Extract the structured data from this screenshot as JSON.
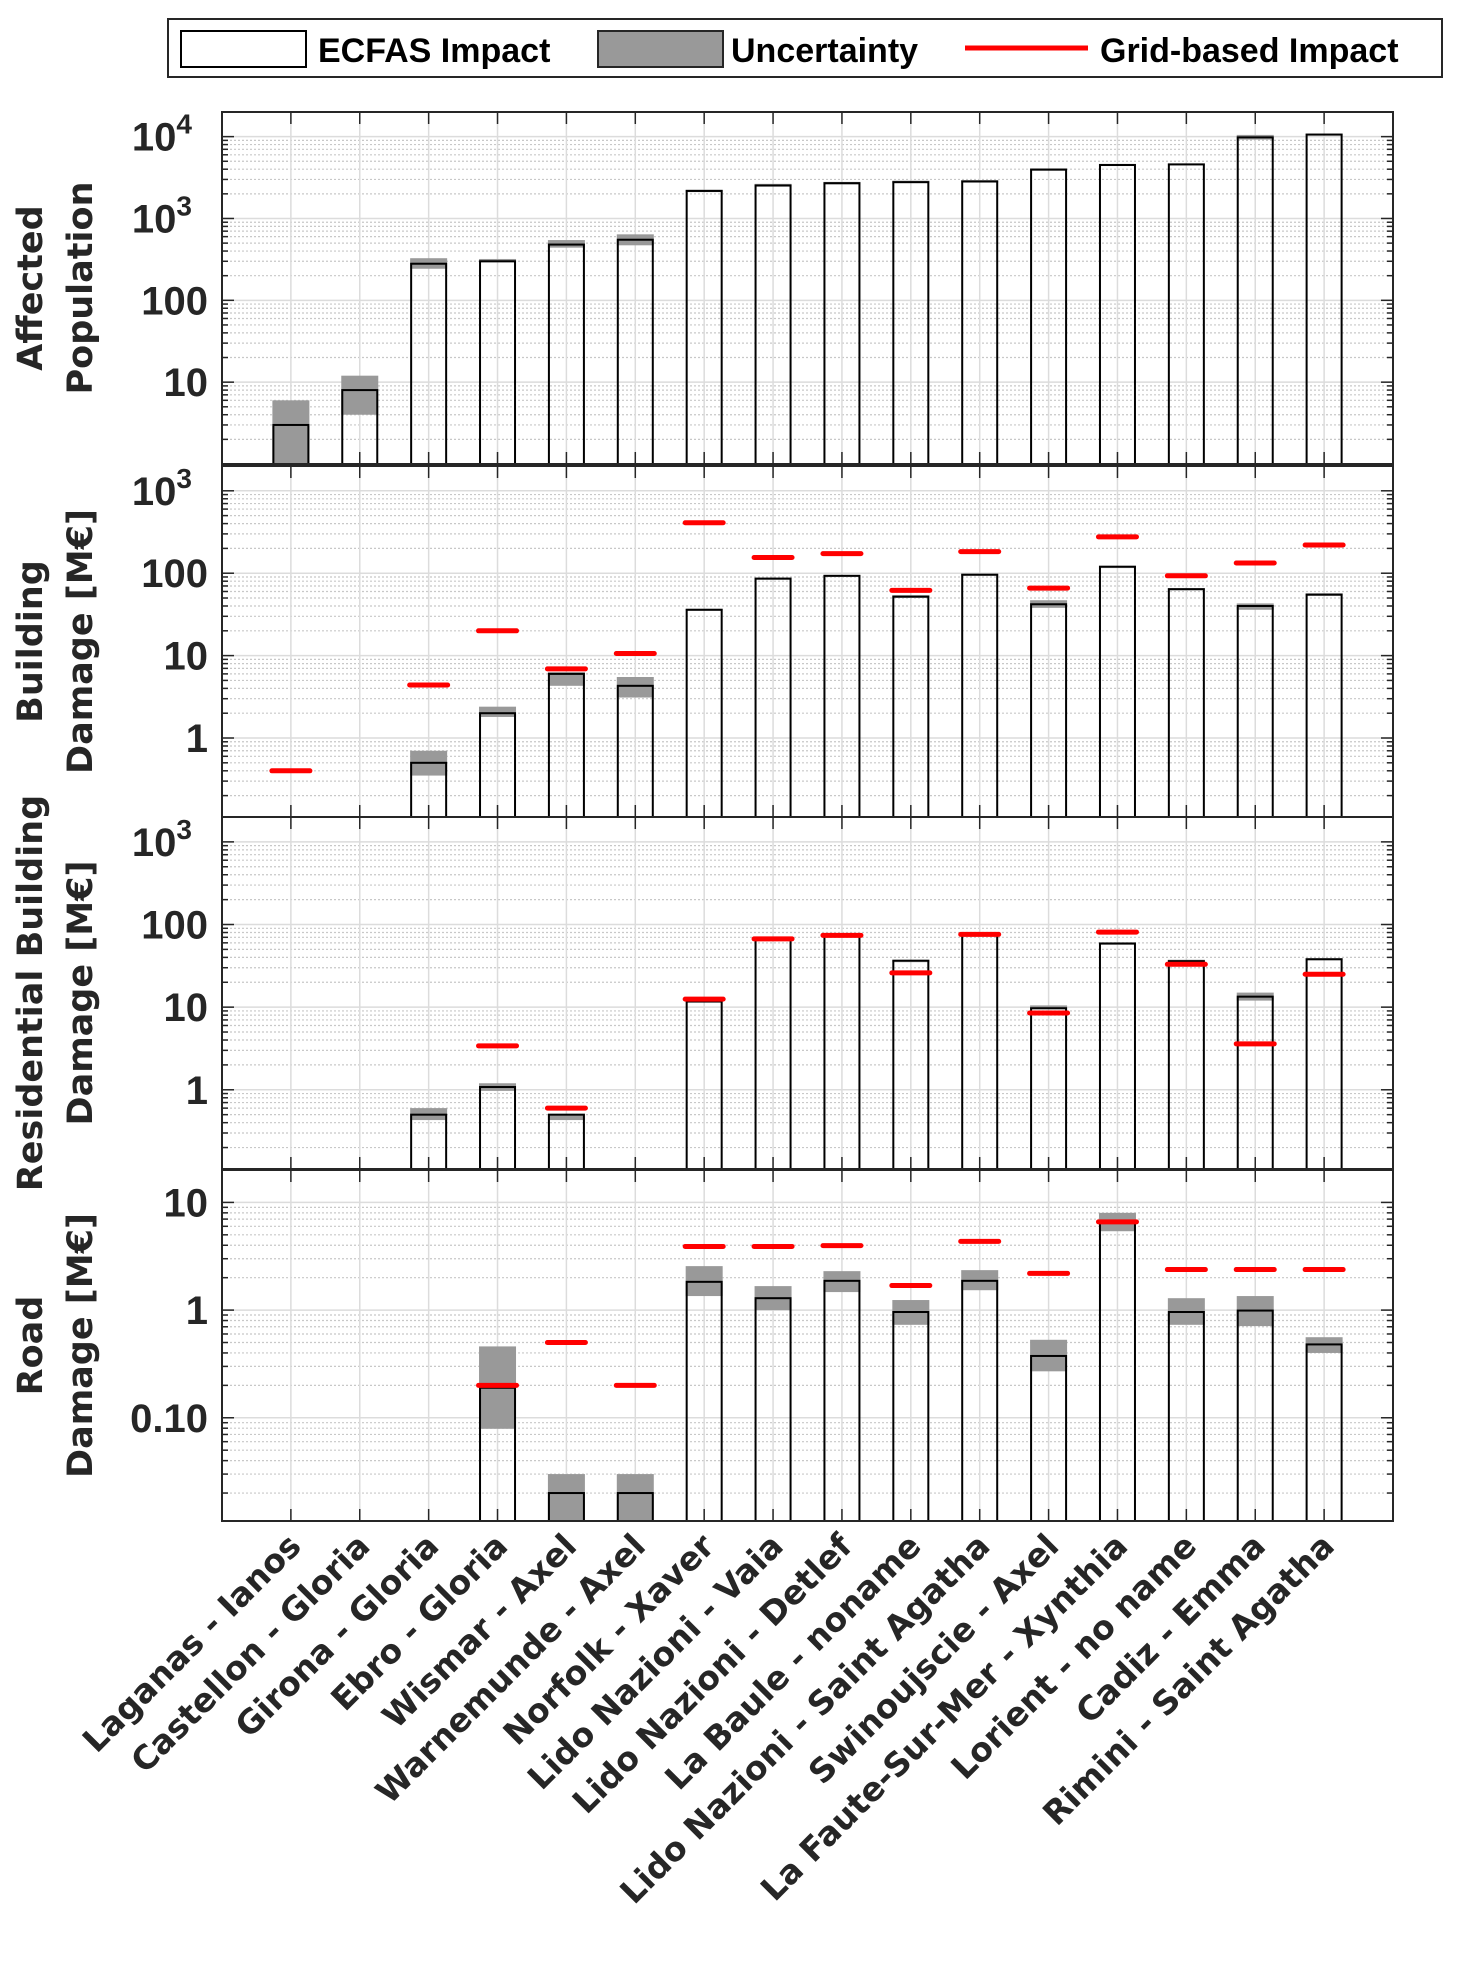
{
  "chart_data": {
    "type": "bar",
    "scale": "log",
    "categories": [
      "Laganas - Ianos",
      "Castellon - Gloria",
      "Girona - Gloria",
      "Ebro - Gloria",
      "Wismar - Axel",
      "Warnemunde - Axel",
      "Norfolk - Xaver",
      "Lido Nazioni - Vaia",
      "Lido Nazioni - Detlef",
      "La Baule - noname",
      "Lido Nazioni - Saint Agatha",
      "Swinoujscie - Axel",
      "La Faute-Sur-Mer - Xynthia",
      "Lorient - no name",
      "Cadiz - Emma",
      "Rimini - Saint Agatha"
    ],
    "legend": {
      "placement": "top",
      "entries": [
        {
          "name": "ECFAS Impact",
          "kind": "bar-outline",
          "color": "#000000"
        },
        {
          "name": "Uncertainty",
          "kind": "band",
          "color": "#999999"
        },
        {
          "name": "Grid-based Impact",
          "kind": "line",
          "color": "#ff0000"
        }
      ]
    },
    "grid": true,
    "panels": [
      {
        "ylabel": [
          "Affected",
          "Population"
        ],
        "ylim": [
          1,
          20000
        ],
        "yticks": [
          {
            "v": 10,
            "label": "10"
          },
          {
            "v": 100,
            "label": "100"
          },
          {
            "v": 1000,
            "label": "10^3"
          },
          {
            "v": 10000,
            "label": "10^4"
          }
        ],
        "ecfas": [
          3,
          8,
          280,
          300,
          480,
          550,
          2170,
          2530,
          2700,
          2780,
          2830,
          3950,
          4500,
          4580,
          9800,
          10600
        ],
        "uncertainty": [
          [
            1,
            6
          ],
          [
            4,
            12
          ],
          [
            243,
            327
          ],
          [
            290,
            320
          ],
          [
            440,
            545
          ],
          [
            470,
            640
          ],
          [
            2100,
            2250
          ],
          [
            2450,
            2650
          ],
          [
            2600,
            2800
          ],
          [
            2700,
            2900
          ],
          [
            2750,
            2950
          ],
          [
            3850,
            4100
          ],
          [
            4400,
            4650
          ],
          [
            4450,
            4700
          ],
          [
            9200,
            10500
          ],
          [
            10300,
            10900
          ]
        ],
        "grid_based": [
          null,
          null,
          null,
          null,
          null,
          null,
          null,
          null,
          null,
          null,
          null,
          null,
          null,
          null,
          null,
          null
        ]
      },
      {
        "ylabel": [
          "Building",
          "Damage [M€]"
        ],
        "ylim": [
          0.11,
          2000
        ],
        "yticks": [
          {
            "v": 1,
            "label": "1"
          },
          {
            "v": 10,
            "label": "10"
          },
          {
            "v": 100,
            "label": "100"
          },
          {
            "v": 1000,
            "label": "10^3"
          }
        ],
        "ecfas": [
          null,
          null,
          0.5,
          2.0,
          6.0,
          4.3,
          36,
          86,
          93,
          52,
          96,
          42,
          120,
          64,
          40,
          55
        ],
        "uncertainty": [
          null,
          null,
          [
            0.35,
            0.7
          ],
          [
            1.8,
            2.4
          ],
          [
            4.3,
            6.3
          ],
          [
            3.1,
            5.5
          ],
          [
            35,
            37
          ],
          [
            84,
            88
          ],
          [
            91,
            95
          ],
          [
            50,
            54
          ],
          [
            94,
            98
          ],
          [
            38,
            47
          ],
          [
            118,
            122
          ],
          [
            62,
            66
          ],
          [
            36,
            43
          ],
          [
            53,
            57
          ]
        ],
        "grid_based": [
          0.4,
          null,
          4.4,
          20,
          6.9,
          10.6,
          410,
          155,
          173,
          62,
          183,
          66,
          276,
          93,
          133,
          220
        ]
      },
      {
        "ylabel": [
          "Residential Building",
          "Damage [M€]"
        ],
        "ylim": [
          0.11,
          2000
        ],
        "yticks": [
          {
            "v": 1,
            "label": "1"
          },
          {
            "v": 10,
            "label": "10"
          },
          {
            "v": 100,
            "label": "100"
          },
          {
            "v": 1000,
            "label": "10^3"
          }
        ],
        "ecfas": [
          null,
          null,
          0.5,
          1.08,
          0.5,
          null,
          11.7,
          67,
          73,
          36.5,
          76,
          9.7,
          59,
          36,
          13.4,
          38
        ],
        "uncertainty": [
          null,
          null,
          [
            0.43,
            0.6
          ],
          [
            0.97,
            1.2
          ],
          [
            0.43,
            0.5
          ],
          null,
          [
            11.5,
            12
          ],
          [
            66,
            68
          ],
          [
            72,
            74
          ],
          [
            36,
            37
          ],
          [
            75,
            77
          ],
          [
            9.4,
            10.5
          ],
          [
            58,
            60
          ],
          [
            35,
            37.5
          ],
          [
            12,
            15
          ],
          [
            37,
            39
          ]
        ],
        "grid_based": [
          null,
          null,
          null,
          3.4,
          0.6,
          null,
          12.5,
          67,
          74,
          26,
          76,
          8.5,
          81,
          33,
          3.6,
          25
        ]
      },
      {
        "ylabel": [
          "Road",
          "Damage [M€]"
        ],
        "ylim": [
          0.011,
          20
        ],
        "yticks": [
          {
            "v": 0.1,
            "label": "0.10"
          },
          {
            "v": 1,
            "label": "1"
          },
          {
            "v": 10,
            "label": "10"
          }
        ],
        "ecfas": [
          null,
          null,
          null,
          0.19,
          0.02,
          0.02,
          1.83,
          1.29,
          1.87,
          0.96,
          1.87,
          0.375,
          6.6,
          0.96,
          0.99,
          0.48
        ],
        "uncertainty": [
          null,
          null,
          null,
          [
            0.079,
            0.46
          ],
          [
            0.011,
            0.03
          ],
          [
            0.011,
            0.03
          ],
          [
            1.35,
            2.56
          ],
          [
            1.0,
            1.67
          ],
          [
            1.47,
            2.3
          ],
          [
            0.73,
            1.24
          ],
          [
            1.53,
            2.35
          ],
          [
            0.27,
            0.53
          ],
          [
            5.4,
            8.0
          ],
          [
            0.73,
            1.29
          ],
          [
            0.71,
            1.35
          ],
          [
            0.4,
            0.56
          ]
        ],
        "grid_based": [
          null,
          null,
          null,
          0.2,
          0.5,
          0.2,
          3.9,
          3.9,
          3.97,
          1.69,
          4.35,
          2.19,
          6.6,
          2.38,
          2.38,
          2.38
        ]
      }
    ]
  }
}
